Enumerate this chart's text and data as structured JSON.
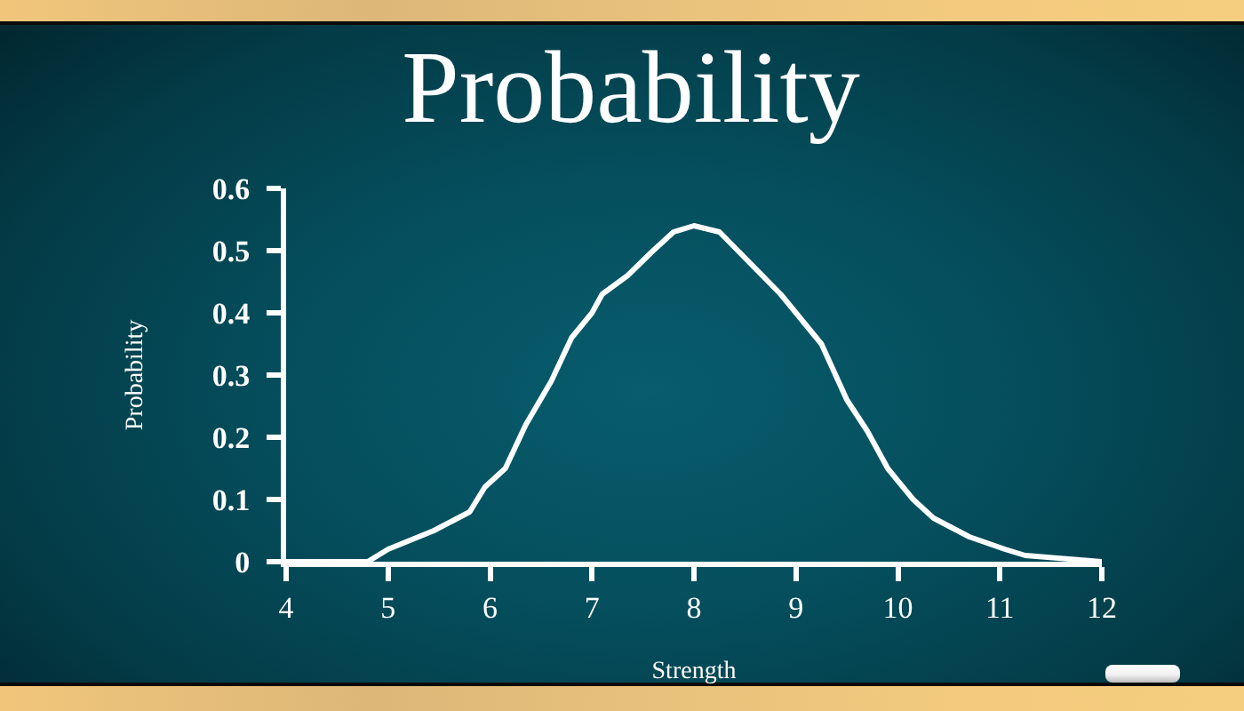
{
  "chart_data": {
    "type": "line",
    "title": "Probability",
    "xlabel": "Strength",
    "ylabel": "Probability",
    "x": [
      4,
      4.8,
      5.0,
      5.15,
      5.45,
      5.8,
      5.95,
      6.15,
      6.35,
      6.6,
      6.8,
      7.0,
      7.1,
      7.35,
      7.6,
      7.8,
      8.0,
      8.25,
      8.55,
      8.85,
      9.05,
      9.25,
      9.5,
      9.7,
      9.9,
      10.15,
      10.35,
      10.7,
      11.05,
      11.25,
      12
    ],
    "values": [
      0,
      0,
      0.02,
      0.03,
      0.05,
      0.08,
      0.12,
      0.15,
      0.22,
      0.29,
      0.36,
      0.4,
      0.43,
      0.46,
      0.5,
      0.53,
      0.54,
      0.53,
      0.48,
      0.43,
      0.39,
      0.35,
      0.26,
      0.21,
      0.15,
      0.1,
      0.07,
      0.04,
      0.02,
      0.01,
      0
    ],
    "color": "#ffffff",
    "line_style": "solid",
    "xlim": [
      4,
      12
    ],
    "ylim": [
      0,
      0.6
    ],
    "xticks": [
      4,
      5,
      6,
      7,
      8,
      9,
      10,
      11,
      12
    ],
    "yticks": [
      0,
      0.1,
      0.2,
      0.3,
      0.4,
      0.5,
      0.6
    ]
  }
}
